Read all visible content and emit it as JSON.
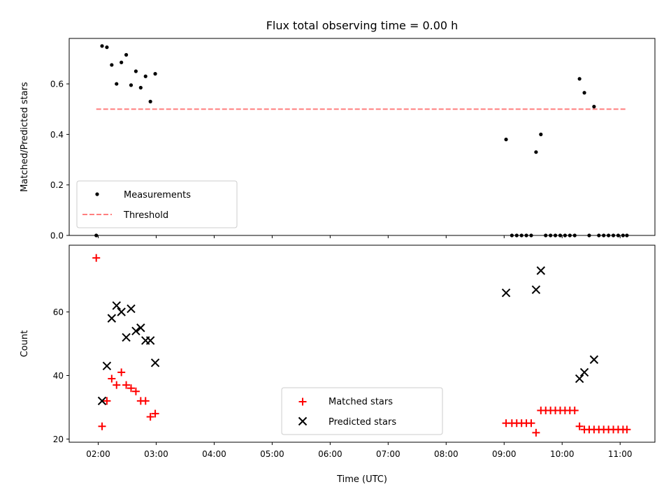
{
  "chart_data": [
    {
      "type": "scatter",
      "title": "Flux total observing time = 0.00 h",
      "xlabel": "",
      "ylabel": "Matched/Predicted stars",
      "ylim": [
        0,
        0.78
      ],
      "xlim": [
        "01:30",
        "11:36"
      ],
      "yticks": [
        "0.0",
        "0.2",
        "0.4",
        "0.6"
      ],
      "legend_position": "lower-left",
      "grid": false,
      "series": [
        {
          "name": "Measurements",
          "marker": "dot",
          "color": "#000000",
          "points": [
            [
              "01:58",
              0.0
            ],
            [
              "02:04",
              0.75
            ],
            [
              "02:09",
              0.745
            ],
            [
              "02:14",
              0.675
            ],
            [
              "02:19",
              0.6
            ],
            [
              "02:24",
              0.685
            ],
            [
              "02:29",
              0.715
            ],
            [
              "02:34",
              0.595
            ],
            [
              "02:39",
              0.65
            ],
            [
              "02:44",
              0.585
            ],
            [
              "02:49",
              0.63
            ],
            [
              "02:54",
              0.53
            ],
            [
              "02:59",
              0.64
            ],
            [
              "09:02",
              0.38
            ],
            [
              "09:08",
              0.0
            ],
            [
              "09:13",
              0.0
            ],
            [
              "09:18",
              0.0
            ],
            [
              "09:23",
              0.0
            ],
            [
              "09:28",
              0.0
            ],
            [
              "09:33",
              0.33
            ],
            [
              "09:38",
              0.4
            ],
            [
              "09:43",
              0.0
            ],
            [
              "09:48",
              0.0
            ],
            [
              "09:53",
              0.0
            ],
            [
              "09:58",
              0.0
            ],
            [
              "10:03",
              0.0
            ],
            [
              "10:08",
              0.0
            ],
            [
              "10:13",
              0.0
            ],
            [
              "10:18",
              0.62
            ],
            [
              "10:23",
              0.565
            ],
            [
              "10:28",
              0.0
            ],
            [
              "10:33",
              0.51
            ],
            [
              "10:38",
              0.0
            ],
            [
              "10:43",
              0.0
            ],
            [
              "10:48",
              0.0
            ],
            [
              "10:53",
              0.0
            ],
            [
              "10:58",
              0.0
            ],
            [
              "11:03",
              0.0
            ],
            [
              "11:07",
              0.0
            ]
          ]
        },
        {
          "name": "Threshold",
          "marker": "dashed-line",
          "color": "#ff7f7f",
          "points": [
            [
              "01:58",
              0.5
            ],
            [
              "11:07",
              0.5
            ]
          ]
        }
      ]
    },
    {
      "type": "scatter",
      "title": "",
      "xlabel": "Time (UTC)",
      "ylabel": "Count",
      "ylim": [
        19,
        81
      ],
      "xlim": [
        "01:30",
        "11:36"
      ],
      "yticks": [
        "20",
        "40",
        "60"
      ],
      "xticks": [
        "02:00",
        "03:00",
        "04:00",
        "05:00",
        "06:00",
        "07:00",
        "08:00",
        "09:00",
        "10:00",
        "11:00"
      ],
      "legend_position": "lower-center",
      "grid": false,
      "series": [
        {
          "name": "Matched stars",
          "marker": "plus",
          "color": "#ff0000",
          "points": [
            [
              "01:58",
              77
            ],
            [
              "02:04",
              24
            ],
            [
              "02:09",
              32
            ],
            [
              "02:14",
              39
            ],
            [
              "02:19",
              37
            ],
            [
              "02:24",
              41
            ],
            [
              "02:29",
              37
            ],
            [
              "02:34",
              36
            ],
            [
              "02:39",
              35
            ],
            [
              "02:44",
              32
            ],
            [
              "02:49",
              32
            ],
            [
              "02:54",
              27
            ],
            [
              "02:59",
              28
            ],
            [
              "09:02",
              25
            ],
            [
              "09:08",
              25
            ],
            [
              "09:13",
              25
            ],
            [
              "09:18",
              25
            ],
            [
              "09:23",
              25
            ],
            [
              "09:28",
              25
            ],
            [
              "09:33",
              22
            ],
            [
              "09:38",
              29
            ],
            [
              "09:43",
              29
            ],
            [
              "09:48",
              29
            ],
            [
              "09:53",
              29
            ],
            [
              "09:58",
              29
            ],
            [
              "10:03",
              29
            ],
            [
              "10:08",
              29
            ],
            [
              "10:13",
              29
            ],
            [
              "10:18",
              24
            ],
            [
              "10:23",
              23
            ],
            [
              "10:28",
              23
            ],
            [
              "10:33",
              23
            ],
            [
              "10:38",
              23
            ],
            [
              "10:43",
              23
            ],
            [
              "10:48",
              23
            ],
            [
              "10:53",
              23
            ],
            [
              "10:58",
              23
            ],
            [
              "11:03",
              23
            ],
            [
              "11:07",
              23
            ]
          ]
        },
        {
          "name": "Predicted stars",
          "marker": "x",
          "color": "#000000",
          "points": [
            [
              "02:04",
              32
            ],
            [
              "02:09",
              43
            ],
            [
              "02:14",
              58
            ],
            [
              "02:19",
              62
            ],
            [
              "02:24",
              60
            ],
            [
              "02:29",
              52
            ],
            [
              "02:34",
              61
            ],
            [
              "02:39",
              54
            ],
            [
              "02:44",
              55
            ],
            [
              "02:49",
              51
            ],
            [
              "02:54",
              51
            ],
            [
              "02:59",
              44
            ],
            [
              "09:02",
              66
            ],
            [
              "09:33",
              67
            ],
            [
              "09:38",
              73
            ],
            [
              "10:18",
              39
            ],
            [
              "10:23",
              41
            ],
            [
              "10:33",
              45
            ]
          ]
        }
      ]
    }
  ]
}
